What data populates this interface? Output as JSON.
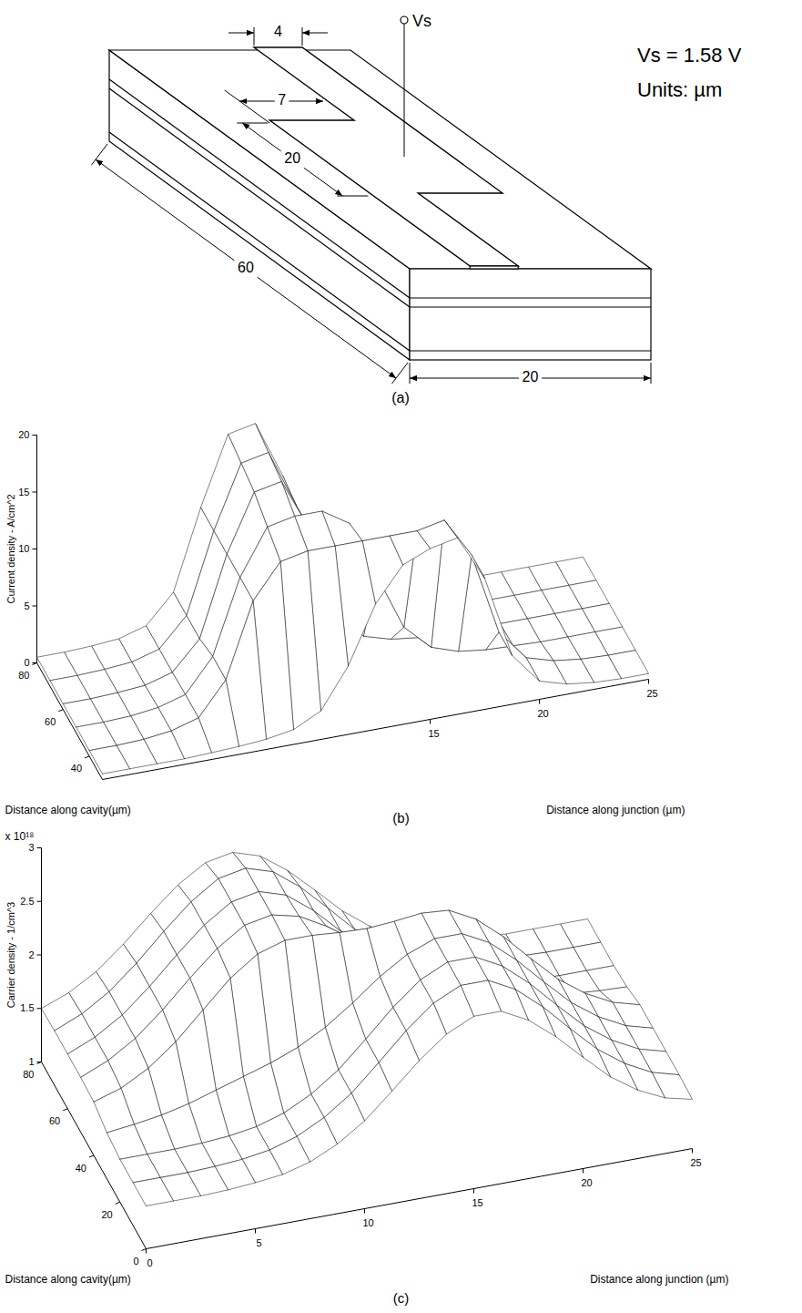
{
  "diagram": {
    "label": "(a)",
    "terminal": "Vs",
    "annotations": [
      "Vs = 1.58 V",
      "Units: µm"
    ],
    "dimensions": {
      "stripe_width": 4,
      "jog_length": 20,
      "jog_offset": 7,
      "cavity_length": 60,
      "device_width": 20
    }
  },
  "chart_data": [
    {
      "panel": "(b)",
      "type": "surface",
      "xlabel": "Distance along junction (µm)",
      "ylabel": "Distance along cavity(µm)",
      "zlabel": "Current density - A/cm^2",
      "xlim": [
        0,
        25
      ],
      "ylim": [
        30,
        80
      ],
      "zlim": [
        0,
        20
      ],
      "xticks": [
        15,
        20,
        25
      ],
      "yticks": [
        40,
        60,
        80
      ],
      "zticks": [
        0,
        5,
        10,
        15,
        20
      ],
      "x": [
        0,
        1.25,
        2.5,
        3.75,
        5,
        6.25,
        7.5,
        8.75,
        10,
        11.25,
        12.5,
        13.75,
        15,
        16.25,
        17.5,
        18.75,
        20,
        21.25,
        22.5,
        23.75,
        25
      ],
      "y": [
        30,
        40,
        50,
        60,
        70,
        80
      ],
      "values": [
        [
          0.5,
          0.5,
          0.5,
          0.5,
          0.6,
          0.7,
          0.9,
          1.3,
          2.5,
          6,
          11,
          14,
          15,
          15.5,
          11.5,
          4.3,
          1.6,
          0.9,
          0.6,
          0.5,
          0.5
        ],
        [
          0.5,
          0.5,
          0.6,
          0.9,
          1.6,
          4.5,
          11,
          14,
          14.5,
          14.5,
          14.5,
          14.5,
          14.5,
          15,
          11.5,
          4.3,
          1.6,
          0.9,
          0.6,
          0.5,
          0.5
        ],
        [
          0.5,
          0.5,
          0.6,
          0.9,
          1.6,
          4.5,
          11,
          15,
          15.5,
          15.5,
          14,
          9,
          4,
          1.8,
          1,
          0.7,
          0.6,
          0.5,
          0.5,
          0.5,
          0.5
        ],
        [
          0.5,
          0.5,
          0.6,
          0.8,
          1.5,
          4,
          11,
          16,
          16.5,
          12,
          4.5,
          1.6,
          0.9,
          0.6,
          0.5,
          0.5,
          0.5,
          0.5,
          0.5,
          0.5,
          0.5
        ],
        [
          0.5,
          0.5,
          0.6,
          0.8,
          1.5,
          4,
          11,
          16.5,
          17,
          12,
          4.5,
          1.6,
          0.9,
          0.6,
          0.5,
          0.5,
          0.5,
          0.5,
          0.5,
          0.5,
          0.5
        ],
        [
          0.5,
          0.5,
          0.6,
          0.8,
          1.5,
          4,
          11,
          17,
          17.5,
          12.5,
          4.5,
          1.6,
          0.9,
          0.6,
          0.5,
          0.5,
          0.5,
          0.5,
          0.5,
          0.5,
          0.5
        ]
      ]
    },
    {
      "panel": "(c)",
      "type": "surface",
      "xlabel": "Distance along junction (µm)",
      "ylabel": "Distance along cavity(µm)",
      "zlabel": "Carrier density - 1/cm^3",
      "annotations": [
        "x 10¹⁸"
      ],
      "xlim": [
        0,
        25
      ],
      "ylim": [
        0,
        80
      ],
      "zlim": [
        1,
        3
      ],
      "xticks": [
        0,
        5,
        10,
        15,
        20,
        25
      ],
      "yticks": [
        0,
        20,
        40,
        60,
        80
      ],
      "zticks": [
        1,
        1.5,
        2,
        2.5,
        3
      ],
      "x": [
        0,
        1.25,
        2.5,
        3.75,
        5,
        6.25,
        7.5,
        8.75,
        10,
        11.25,
        12.5,
        13.75,
        15,
        16.25,
        17.5,
        18.75,
        20,
        21.25,
        22.5,
        23.75,
        25
      ],
      "y": [
        0,
        10,
        20,
        30,
        40,
        50,
        60,
        70,
        80
      ],
      "values": [
        [
          1.4,
          1.4,
          1.4,
          1.41,
          1.43,
          1.46,
          1.53,
          1.65,
          1.82,
          2.05,
          2.29,
          2.49,
          2.61,
          2.61,
          2.48,
          2.28,
          2.04,
          1.81,
          1.64,
          1.52,
          1.46
        ],
        [
          1.4,
          1.4,
          1.4,
          1.41,
          1.43,
          1.47,
          1.55,
          1.68,
          1.86,
          2.1,
          2.35,
          2.56,
          2.68,
          2.68,
          2.55,
          2.34,
          2.09,
          1.85,
          1.67,
          1.54,
          1.47
        ],
        [
          1.4,
          1.4,
          1.4,
          1.41,
          1.43,
          1.47,
          1.55,
          1.68,
          1.86,
          2.1,
          2.35,
          2.56,
          2.68,
          2.68,
          2.55,
          2.34,
          2.09,
          1.85,
          1.67,
          1.54,
          1.47
        ],
        [
          1.43,
          1.46,
          1.5,
          1.56,
          1.64,
          1.72,
          1.8,
          1.9,
          2.04,
          2.22,
          2.42,
          2.58,
          2.68,
          2.68,
          2.55,
          2.34,
          2.09,
          1.85,
          1.67,
          1.54,
          1.47
        ],
        [
          1.5,
          1.58,
          1.72,
          1.92,
          2.17,
          2.42,
          2.6,
          2.68,
          2.68,
          2.66,
          2.65,
          2.67,
          2.7,
          2.68,
          2.55,
          2.34,
          2.09,
          1.85,
          1.67,
          1.54,
          1.47
        ],
        [
          1.51,
          1.62,
          1.78,
          2.0,
          2.25,
          2.48,
          2.65,
          2.7,
          2.64,
          2.5,
          2.32,
          2.14,
          1.96,
          1.8,
          1.67,
          1.58,
          1.52,
          1.48,
          1.45,
          1.43,
          1.42
        ],
        [
          1.51,
          1.62,
          1.78,
          2.0,
          2.25,
          2.48,
          2.65,
          2.7,
          2.62,
          2.43,
          2.19,
          1.94,
          1.74,
          1.59,
          1.49,
          1.44,
          1.42,
          1.41,
          1.4,
          1.4,
          1.4
        ],
        [
          1.51,
          1.62,
          1.78,
          2.0,
          2.25,
          2.48,
          2.65,
          2.7,
          2.62,
          2.43,
          2.19,
          1.94,
          1.74,
          1.59,
          1.49,
          1.44,
          1.42,
          1.41,
          1.4,
          1.4,
          1.4
        ],
        [
          1.5,
          1.6,
          1.75,
          1.96,
          2.2,
          2.42,
          2.58,
          2.63,
          2.55,
          2.37,
          2.14,
          1.9,
          1.71,
          1.57,
          1.48,
          1.43,
          1.41,
          1.4,
          1.4,
          1.4,
          1.4
        ]
      ]
    }
  ]
}
